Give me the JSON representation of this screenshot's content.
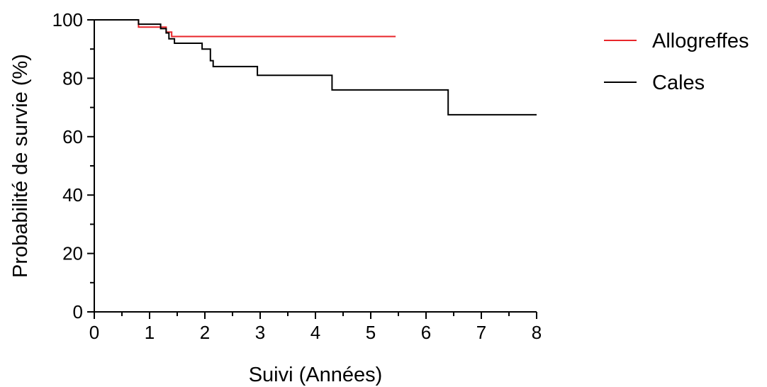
{
  "chart_data": {
    "type": "line",
    "xlabel": "Suivi (Années)",
    "ylabel": "Probabilité de survie (%)",
    "xlim": [
      0,
      8
    ],
    "ylim": [
      0,
      100
    ],
    "xticks": [
      0,
      1,
      2,
      3,
      4,
      5,
      6,
      7,
      8
    ],
    "yticks": [
      0,
      20,
      40,
      60,
      80,
      100
    ],
    "grid": false,
    "legend_position": "top-right",
    "series": [
      {
        "name": "Allogreffes",
        "color": "#e8262b",
        "step": true,
        "x": [
          0,
          0.8,
          1.3,
          1.4,
          5.45
        ],
        "y": [
          100,
          97.5,
          95.8,
          94.3,
          94.3
        ]
      },
      {
        "name": "Cales",
        "color": "#000000",
        "step": true,
        "x": [
          0,
          0.8,
          1.2,
          1.3,
          1.35,
          1.45,
          1.95,
          2.1,
          2.15,
          2.2,
          2.95,
          4.3,
          6.4,
          8.0
        ],
        "y": [
          100,
          98.5,
          97,
          95.5,
          93.5,
          92,
          90,
          86,
          84,
          84,
          81,
          76,
          67.5,
          67.5
        ]
      }
    ]
  }
}
